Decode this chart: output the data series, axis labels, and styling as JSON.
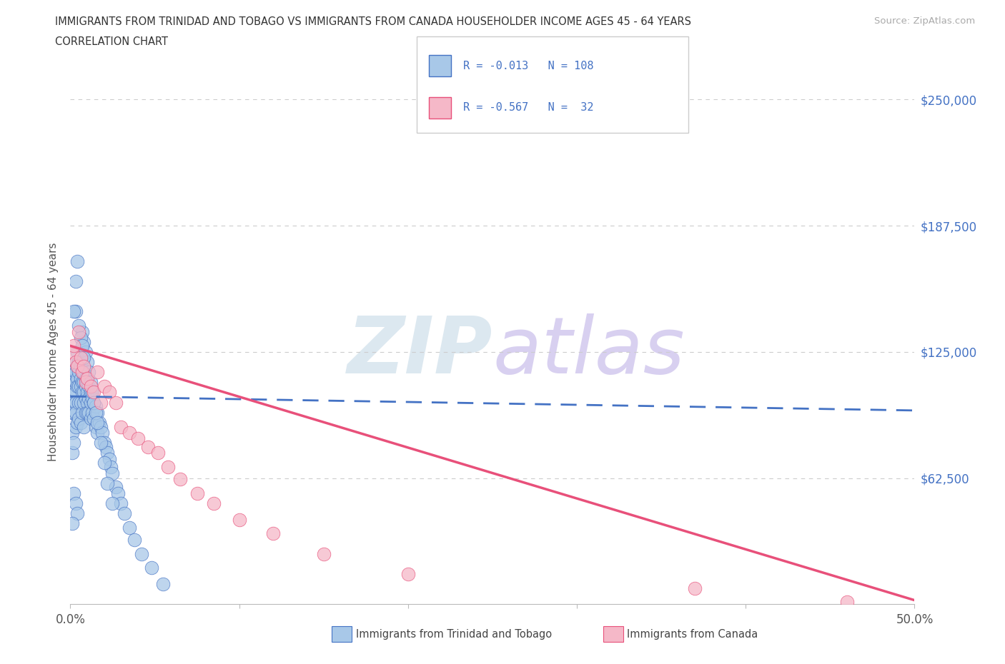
{
  "title_line1": "IMMIGRANTS FROM TRINIDAD AND TOBAGO VS IMMIGRANTS FROM CANADA HOUSEHOLDER INCOME AGES 45 - 64 YEARS",
  "title_line2": "CORRELATION CHART",
  "source_text": "Source: ZipAtlas.com",
  "ylabel": "Householder Income Ages 45 - 64 years",
  "xlim": [
    0.0,
    0.5
  ],
  "ylim": [
    0,
    250000
  ],
  "xticklabels": [
    "0.0%",
    "",
    "",
    "",
    "",
    "50.0%"
  ],
  "ytick_positions": [
    0,
    62500,
    125000,
    187500,
    250000
  ],
  "ytick_labels": [
    "",
    "$62,500",
    "$125,000",
    "$187,500",
    "$250,000"
  ],
  "legend_r1": "-0.013",
  "legend_n1": "108",
  "legend_r2": "-0.567",
  "legend_n2": "32",
  "color_tt": "#a8c8e8",
  "color_ca": "#f5b8c8",
  "line_color_tt": "#4472c4",
  "line_color_ca": "#e8507a",
  "grid_color": "#cccccc",
  "title_color": "#333333",
  "axis_label_color": "#555555",
  "tick_color_right": "#4472c4",
  "watermark_color_ZIP": "#dce8f0",
  "watermark_color_atlas": "#d8d0f0",
  "tt_scatter_x": [
    0.001,
    0.001,
    0.001,
    0.001,
    0.002,
    0.002,
    0.002,
    0.002,
    0.002,
    0.002,
    0.003,
    0.003,
    0.003,
    0.003,
    0.003,
    0.003,
    0.003,
    0.004,
    0.004,
    0.004,
    0.004,
    0.004,
    0.005,
    0.005,
    0.005,
    0.005,
    0.005,
    0.006,
    0.006,
    0.006,
    0.006,
    0.006,
    0.007,
    0.007,
    0.007,
    0.007,
    0.007,
    0.008,
    0.008,
    0.008,
    0.008,
    0.008,
    0.009,
    0.009,
    0.009,
    0.009,
    0.01,
    0.01,
    0.01,
    0.01,
    0.011,
    0.011,
    0.011,
    0.012,
    0.012,
    0.012,
    0.013,
    0.013,
    0.014,
    0.014,
    0.015,
    0.015,
    0.016,
    0.016,
    0.017,
    0.018,
    0.019,
    0.02,
    0.021,
    0.022,
    0.023,
    0.024,
    0.025,
    0.027,
    0.028,
    0.03,
    0.032,
    0.035,
    0.038,
    0.042,
    0.048,
    0.055,
    0.007,
    0.008,
    0.009,
    0.01,
    0.011,
    0.012,
    0.013,
    0.014,
    0.015,
    0.016,
    0.018,
    0.02,
    0.022,
    0.025,
    0.003,
    0.004,
    0.003,
    0.002,
    0.005,
    0.006,
    0.007,
    0.008,
    0.002,
    0.003,
    0.004,
    0.001
  ],
  "tt_scatter_y": [
    100000,
    95000,
    85000,
    75000,
    115000,
    110000,
    105000,
    100000,
    95000,
    80000,
    120000,
    115000,
    110000,
    105000,
    100000,
    95000,
    88000,
    125000,
    118000,
    112000,
    108000,
    90000,
    120000,
    115000,
    108000,
    100000,
    92000,
    118000,
    112000,
    108000,
    100000,
    90000,
    120000,
    115000,
    110000,
    105000,
    95000,
    115000,
    110000,
    105000,
    100000,
    88000,
    112000,
    108000,
    102000,
    95000,
    110000,
    105000,
    100000,
    95000,
    108000,
    102000,
    95000,
    105000,
    100000,
    92000,
    102000,
    95000,
    100000,
    92000,
    98000,
    88000,
    95000,
    85000,
    90000,
    88000,
    85000,
    80000,
    78000,
    75000,
    72000,
    68000,
    65000,
    58000,
    55000,
    50000,
    45000,
    38000,
    32000,
    25000,
    18000,
    10000,
    135000,
    130000,
    125000,
    120000,
    115000,
    110000,
    105000,
    100000,
    95000,
    90000,
    80000,
    70000,
    60000,
    50000,
    160000,
    170000,
    145000,
    145000,
    138000,
    132000,
    128000,
    122000,
    55000,
    50000,
    45000,
    40000
  ],
  "ca_scatter_x": [
    0.001,
    0.002,
    0.003,
    0.004,
    0.005,
    0.006,
    0.007,
    0.008,
    0.009,
    0.01,
    0.012,
    0.014,
    0.016,
    0.018,
    0.02,
    0.023,
    0.027,
    0.03,
    0.035,
    0.04,
    0.046,
    0.052,
    0.058,
    0.065,
    0.075,
    0.085,
    0.1,
    0.12,
    0.15,
    0.2,
    0.37,
    0.46
  ],
  "ca_scatter_y": [
    125000,
    128000,
    120000,
    118000,
    135000,
    122000,
    115000,
    118000,
    110000,
    112000,
    108000,
    105000,
    115000,
    100000,
    108000,
    105000,
    100000,
    88000,
    85000,
    82000,
    78000,
    75000,
    68000,
    62000,
    55000,
    50000,
    42000,
    35000,
    25000,
    15000,
    8000,
    1000
  ],
  "tt_trendline_x": [
    0.0,
    0.5
  ],
  "tt_trendline_y": [
    103000,
    96000
  ],
  "ca_trendline_x": [
    0.0,
    0.5
  ],
  "ca_trendline_y": [
    128000,
    2000
  ]
}
